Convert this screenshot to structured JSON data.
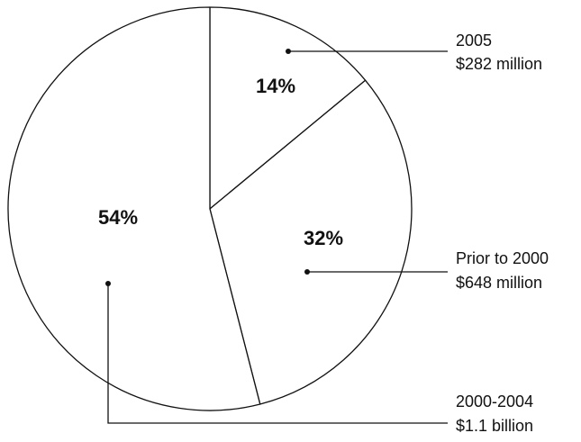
{
  "chart_data": {
    "type": "pie",
    "title": "",
    "start": "12 o'clock",
    "direction": "clockwise",
    "slices": [
      {
        "label": "2005",
        "value": 14,
        "percent_label": "14%",
        "amount": "$282 million"
      },
      {
        "label": "Prior to 2000",
        "value": 32,
        "percent_label": "32%",
        "amount": "$648 million"
      },
      {
        "label": "2000-2004",
        "value": 54,
        "percent_label": "54%",
        "amount": "$1.1 billion"
      }
    ],
    "legend": "none",
    "callouts": "right side with leader lines",
    "colors": {
      "fill": "#ffffff",
      "stroke": "#111111",
      "text": "#111111"
    }
  }
}
